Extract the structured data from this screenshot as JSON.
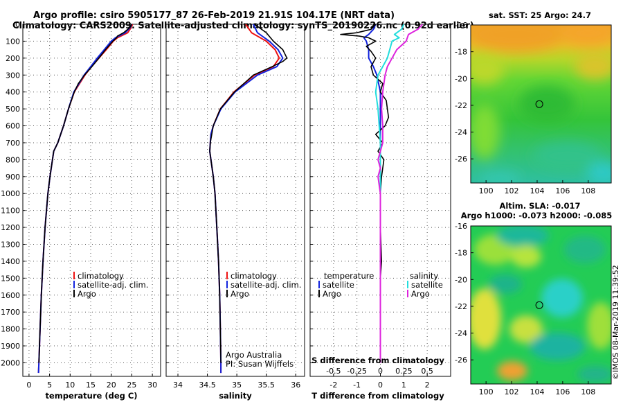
{
  "header": {
    "title_line1": "Argo profile: csiro 5905177_87 26-Feb-2019 21.91S 104.17E (NRT data)",
    "title_line2": "Climatology: CARS2009. Satellite-adjusted climatology: synTS_20190226.nc (0.92d earlier)"
  },
  "colors": {
    "climatology": "#ee1111",
    "satellite": "#1122dd",
    "argo": "#000000",
    "satellite_salinity": "#22dddd",
    "argo_salinity": "#dd22dd"
  },
  "chart_data": [
    {
      "type": "line",
      "id": "temperature",
      "xlabel": "temperature (deg C)",
      "ylabel": "",
      "xlim": [
        -1.5,
        32
      ],
      "ylim": [
        2080,
        0
      ],
      "x_ticks": [
        0,
        5,
        10,
        15,
        20,
        25,
        30
      ],
      "y_ticks": [
        0,
        100,
        200,
        300,
        400,
        500,
        600,
        700,
        800,
        900,
        1000,
        1100,
        1200,
        1300,
        1400,
        1500,
        1600,
        1700,
        1800,
        1900,
        2000
      ],
      "legend": [
        "climatology",
        "satellite-adj. clim.",
        "Argo"
      ],
      "series": [
        {
          "name": "climatology",
          "color": "#ee1111",
          "depth": [
            0,
            20,
            50,
            80,
            100,
            150,
            200,
            250,
            300,
            400,
            500,
            600,
            700,
            750,
            800,
            900,
            1000,
            1200,
            1400,
            1600,
            1800,
            2000,
            2060
          ],
          "values": [
            25.2,
            24.8,
            24.0,
            21.5,
            20.5,
            18.8,
            17.0,
            15.2,
            13.6,
            11.0,
            9.6,
            8.4,
            7.0,
            6.0,
            5.7,
            5.1,
            4.6,
            3.9,
            3.4,
            3.0,
            2.7,
            2.4,
            2.3
          ]
        },
        {
          "name": "satellite-adj. clim.",
          "color": "#1122dd",
          "depth": [
            0,
            20,
            50,
            80,
            100,
            150,
            200,
            250,
            300,
            400,
            500,
            600,
            700,
            750,
            800,
            900,
            1000,
            1200,
            1400,
            1600,
            1800,
            2000,
            2060
          ],
          "values": [
            25.0,
            24.6,
            23.4,
            21.0,
            20.0,
            18.3,
            16.6,
            15.0,
            13.4,
            10.9,
            9.6,
            8.4,
            7.0,
            6.0,
            5.7,
            5.1,
            4.6,
            3.9,
            3.4,
            3.0,
            2.7,
            2.4,
            2.3
          ]
        },
        {
          "name": "Argo",
          "color": "#000000",
          "depth": [
            0,
            20,
            50,
            70,
            80,
            100,
            150,
            200,
            250,
            300,
            350,
            400,
            500,
            600,
            700,
            750,
            800,
            900,
            1000,
            1200,
            1400,
            1600,
            1800,
            2000
          ],
          "values": [
            25.0,
            24.5,
            23.0,
            21.5,
            21.3,
            20.4,
            18.6,
            17.0,
            15.3,
            13.5,
            12.0,
            11.0,
            9.6,
            8.4,
            7.0,
            6.0,
            5.7,
            5.1,
            4.6,
            3.9,
            3.4,
            3.0,
            2.7,
            2.4
          ]
        }
      ]
    },
    {
      "type": "line",
      "id": "salinity",
      "xlabel": "salinity",
      "ylabel": "",
      "xlim": [
        33.8,
        36.15
      ],
      "ylim": [
        2080,
        0
      ],
      "x_ticks": [
        34,
        34.5,
        35,
        35.5,
        36
      ],
      "legend": [
        "climatology",
        "satellite-adj. clim.",
        "Argo"
      ],
      "annotation": [
        "Argo Australia",
        "PI: Susan Wijffels"
      ],
      "series": [
        {
          "name": "climatology",
          "color": "#ee1111",
          "depth": [
            0,
            50,
            100,
            150,
            200,
            250,
            300,
            400,
            500,
            600,
            650,
            700,
            750,
            800,
            900,
            1000,
            1200,
            1400,
            1600,
            1800,
            2000,
            2060
          ],
          "values": [
            35.15,
            35.25,
            35.5,
            35.65,
            35.72,
            35.62,
            35.3,
            34.95,
            34.72,
            34.6,
            34.56,
            34.55,
            34.54,
            34.56,
            34.6,
            34.63,
            34.66,
            34.69,
            34.71,
            34.72,
            34.73,
            34.73
          ]
        },
        {
          "name": "satellite-adj. clim.",
          "color": "#1122dd",
          "depth": [
            0,
            50,
            100,
            150,
            200,
            250,
            300,
            400,
            500,
            600,
            650,
            700,
            750,
            800,
            900,
            1000,
            1200,
            1400,
            1600,
            1800,
            2000,
            2060
          ],
          "values": [
            35.28,
            35.35,
            35.55,
            35.7,
            35.78,
            35.68,
            35.35,
            34.97,
            34.73,
            34.6,
            34.56,
            34.55,
            34.54,
            34.56,
            34.6,
            34.63,
            34.66,
            34.69,
            34.71,
            34.72,
            34.73,
            34.73
          ]
        },
        {
          "name": "Argo",
          "color": "#000000",
          "depth": [
            0,
            50,
            100,
            150,
            200,
            220,
            250,
            300,
            400,
            500,
            600,
            700,
            750,
            800,
            900,
            1000,
            1200,
            1400,
            1600,
            1800,
            2000
          ],
          "values": [
            35.3,
            35.5,
            35.62,
            35.78,
            35.85,
            35.78,
            35.6,
            35.28,
            34.96,
            34.72,
            34.6,
            34.55,
            34.54,
            34.56,
            34.6,
            34.63,
            34.66,
            34.69,
            34.71,
            34.72,
            34.73
          ]
        }
      ]
    },
    {
      "type": "line",
      "id": "difference",
      "xlabel": "T difference from climatology",
      "xlabel_top": "S difference from climatology",
      "xlim": [
        -3,
        3
      ],
      "ylim": [
        2080,
        0
      ],
      "x_ticks": [
        -2,
        -1,
        0,
        1,
        2
      ],
      "x_ticks_s": [
        "-0.5",
        "-0.25",
        "0",
        "0.25",
        "0.5"
      ],
      "x_ticks_s_values": [
        -2,
        -1,
        0,
        1,
        2
      ],
      "legend_left_title": "temperature",
      "legend_left": [
        "satellite",
        "Argo"
      ],
      "legend_right_title": "salinity",
      "legend_right": [
        "satellite",
        "Argo"
      ],
      "series": [
        {
          "name": "T satellite",
          "color": "#1122dd",
          "depth": [
            0,
            30,
            60,
            80,
            100,
            150,
            200,
            250,
            300,
            400,
            600,
            800,
            1000,
            1500,
            2000
          ],
          "values": [
            -0.2,
            -0.3,
            -0.5,
            -0.7,
            -0.6,
            -0.5,
            -0.5,
            -0.3,
            -0.15,
            0,
            0,
            0,
            0,
            0,
            0
          ]
        },
        {
          "name": "T Argo",
          "color": "#000000",
          "depth": [
            0,
            30,
            50,
            60,
            70,
            80,
            100,
            130,
            160,
            200,
            250,
            300,
            350,
            400,
            450,
            500,
            550,
            600,
            650,
            700,
            750,
            800,
            900,
            1000,
            1200,
            1400,
            1500,
            1600,
            1800,
            2000
          ],
          "values": [
            -0.2,
            -0.4,
            -1.0,
            -1.7,
            -0.9,
            -0.5,
            -0.2,
            -0.6,
            -0.4,
            -0.2,
            -0.4,
            -0.3,
            0.1,
            0.0,
            0.25,
            0.3,
            0.35,
            0.2,
            -0.2,
            0.1,
            -0.1,
            0.15,
            0.05,
            0.0,
            0.0,
            0.05,
            0.0,
            0.0,
            0.0,
            0.0
          ]
        },
        {
          "name": "S satellite",
          "color": "#22dddd",
          "depth": [
            0,
            30,
            60,
            80,
            100,
            150,
            200,
            250,
            300,
            400,
            500,
            700,
            1000,
            1500,
            2000
          ],
          "values": [
            1.0,
            0.9,
            0.6,
            0.8,
            0.5,
            0.4,
            0.3,
            0.1,
            -0.1,
            -0.2,
            -0.1,
            0,
            0,
            0,
            0
          ]
        },
        {
          "name": "S Argo",
          "color": "#dd22dd",
          "depth": [
            0,
            30,
            60,
            100,
            150,
            200,
            250,
            300,
            400,
            500,
            600,
            700,
            800,
            850,
            900,
            1000,
            1200,
            1500,
            2000
          ],
          "values": [
            1.8,
            1.6,
            1.2,
            1.1,
            0.7,
            0.5,
            0.3,
            0.2,
            0.1,
            0.05,
            0.1,
            0.1,
            -0.1,
            0.0,
            -0.1,
            0.0,
            0.0,
            0.0,
            0.0
          ]
        }
      ]
    },
    {
      "type": "heatmap",
      "id": "sst_map",
      "title": "sat. SST: 25 Argo: 24.7",
      "xlim": [
        98.8,
        109.8
      ],
      "ylim": [
        -27.8,
        -16
      ],
      "x_ticks": [
        100,
        102,
        104,
        106,
        108
      ],
      "y_ticks": [
        -16,
        -18,
        -20,
        -22,
        -24,
        -26
      ],
      "float_position": {
        "lon": 104.17,
        "lat": -21.91
      }
    },
    {
      "type": "heatmap",
      "id": "sla_map",
      "title": "Altim. SLA: -0.017",
      "subtitle": "Argo h1000: -0.073 h2000: -0.085",
      "xlim": [
        98.8,
        109.8
      ],
      "ylim": [
        -27.8,
        -16
      ],
      "x_ticks": [
        100,
        102,
        104,
        106,
        108
      ],
      "y_ticks": [
        -16,
        -18,
        -20,
        -22,
        -24,
        -26
      ],
      "float_position": {
        "lon": 104.17,
        "lat": -21.91
      }
    }
  ],
  "watermark": "©IMOS 08-Mar-2019 11:39:52"
}
